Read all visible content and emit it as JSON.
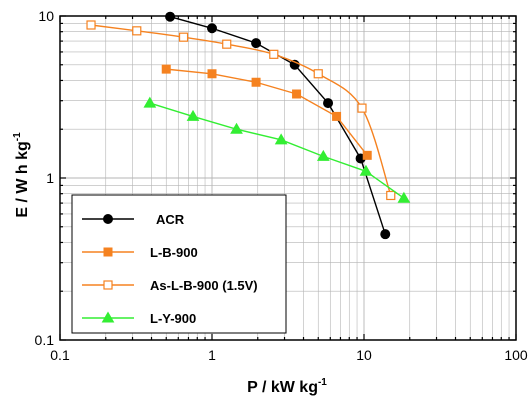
{
  "chart_data": {
    "type": "line",
    "title": "",
    "xlabel": "P / kW kg",
    "xlabel_sup": "-1",
    "ylabel": "E / W h kg",
    "ylabel_sup": "-1",
    "xscale": "log",
    "yscale": "log",
    "xlim": [
      0.1,
      100
    ],
    "ylim": [
      0.1,
      10
    ],
    "x_ticks": [
      "0.1",
      "1",
      "10",
      "100"
    ],
    "y_ticks": [
      "0.1",
      "1",
      "10"
    ],
    "grid": true,
    "legend_position": "bottom-left",
    "series": [
      {
        "name": "ACR",
        "color": "#000000",
        "marker": "circle-filled",
        "x": [
          0.53,
          1.0,
          1.95,
          3.5,
          5.8,
          9.5,
          13.8
        ],
        "y": [
          9.9,
          8.4,
          6.8,
          5.0,
          2.9,
          1.32,
          0.45
        ]
      },
      {
        "name": "L-B-900",
        "color": "#f58220",
        "marker": "square-filled",
        "x": [
          0.5,
          1.0,
          1.95,
          3.6,
          6.6,
          10.5
        ],
        "y": [
          4.7,
          4.4,
          3.9,
          3.3,
          2.4,
          1.38
        ]
      },
      {
        "name": "As-L-B-900 (1.5V)",
        "color": "#f58220",
        "marker": "square-open",
        "x": [
          0.16,
          0.32,
          0.65,
          1.25,
          2.55,
          5.0,
          9.7,
          15.0
        ],
        "y": [
          8.8,
          8.1,
          7.4,
          6.7,
          5.8,
          4.4,
          2.7,
          0.78
        ]
      },
      {
        "name": "L-Y-900",
        "color": "#33ee33",
        "marker": "triangle-filled",
        "x": [
          0.39,
          0.75,
          1.45,
          2.85,
          5.4,
          10.3,
          18.3
        ],
        "y": [
          2.9,
          2.4,
          2.0,
          1.72,
          1.36,
          1.1,
          0.75
        ]
      }
    ]
  }
}
